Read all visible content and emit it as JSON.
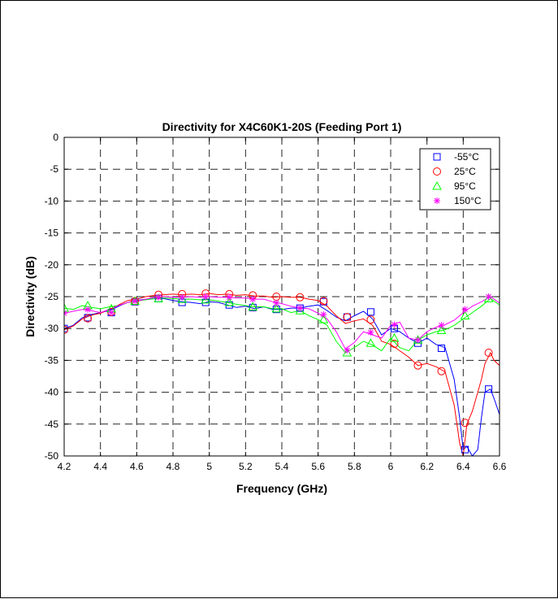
{
  "chart_data": {
    "type": "line",
    "title": "Directivity for X4C60K1-20S (Feeding Port 1)",
    "xlabel": "Frequency (GHz)",
    "ylabel": "Directivity (dB)",
    "xlim": [
      4.2,
      6.6
    ],
    "ylim": [
      -50,
      0
    ],
    "xticks": [
      4.2,
      4.4,
      4.6,
      4.8,
      5,
      5.2,
      5.4,
      5.6,
      5.8,
      6,
      6.2,
      6.4,
      6.6
    ],
    "xtick_labels": [
      "4.2",
      "4.4",
      "4.6",
      "4.8",
      "5",
      "5.2",
      "5.4",
      "5.6",
      "5.8",
      "6",
      "6.2",
      "6.4",
      "6.6"
    ],
    "yticks": [
      0,
      -5,
      -10,
      -15,
      -20,
      -25,
      -30,
      -35,
      -40,
      -45,
      -50
    ],
    "ytick_labels": [
      "0",
      "-5",
      "-10",
      "-15",
      "-20",
      "-25",
      "-30",
      "-35",
      "-40",
      "-45",
      "-50"
    ],
    "grid": true,
    "legend": "top-right",
    "series": [
      {
        "name": "-55°C",
        "color": "#0000ff",
        "marker": "square",
        "x": [
          4.2,
          4.25,
          4.3,
          4.35,
          4.4,
          4.45,
          4.5,
          4.55,
          4.6,
          4.65,
          4.7,
          4.75,
          4.8,
          4.85,
          4.9,
          4.95,
          5.0,
          5.05,
          5.1,
          5.15,
          5.2,
          5.25,
          5.3,
          5.35,
          5.4,
          5.45,
          5.5,
          5.55,
          5.6,
          5.65,
          5.7,
          5.75,
          5.8,
          5.85,
          5.9,
          5.95,
          6.0,
          6.05,
          6.1,
          6.15,
          6.2,
          6.25,
          6.3,
          6.35,
          6.38,
          6.4,
          6.42,
          6.45,
          6.48,
          6.5,
          6.52,
          6.55,
          6.57,
          6.6
        ],
        "y": [
          -30.0,
          -29.5,
          -28.3,
          -27.8,
          -27.5,
          -27.2,
          -26.5,
          -25.9,
          -25.6,
          -25.4,
          -25.3,
          -25.3,
          -25.6,
          -25.8,
          -25.9,
          -26.1,
          -25.8,
          -25.9,
          -26.3,
          -26.7,
          -26.5,
          -26.9,
          -26.6,
          -27.0,
          -27.0,
          -26.8,
          -26.8,
          -26.5,
          -26.3,
          -27.2,
          -28.2,
          -28.8,
          -28.0,
          -27.3,
          -28.5,
          -31.0,
          -30.0,
          -30.5,
          -31.5,
          -32.3,
          -31.5,
          -32.5,
          -33.0,
          -38.0,
          -44.0,
          -49.0,
          -48.5,
          -50.0,
          -49.0,
          -44.0,
          -40.0,
          -39.5,
          -41.0,
          -43.5
        ],
        "marker_x": [
          4.2,
          4.33,
          4.46,
          4.59,
          4.72,
          4.85,
          4.98,
          5.11,
          5.24,
          5.37,
          5.5,
          5.63,
          5.76,
          5.89,
          6.02,
          6.15,
          6.28,
          6.41,
          6.54
        ],
        "marker_y": [
          -30.0,
          -28.3,
          -27.5,
          -25.8,
          -25.3,
          -25.9,
          -25.9,
          -26.3,
          -26.7,
          -27.0,
          -26.8,
          -25.8,
          -28.2,
          -27.4,
          -30.0,
          -32.3,
          -33.1,
          -49.0,
          -39.5
        ]
      },
      {
        "name": "25°C",
        "color": "#ff0000",
        "marker": "circle",
        "x": [
          4.2,
          4.25,
          4.3,
          4.35,
          4.4,
          4.45,
          4.5,
          4.55,
          4.6,
          4.65,
          4.7,
          4.75,
          4.8,
          4.85,
          4.9,
          4.95,
          5.0,
          5.05,
          5.1,
          5.15,
          5.2,
          5.25,
          5.3,
          5.35,
          5.4,
          5.45,
          5.5,
          5.55,
          5.6,
          5.65,
          5.7,
          5.75,
          5.8,
          5.85,
          5.9,
          5.95,
          6.0,
          6.05,
          6.1,
          6.15,
          6.2,
          6.25,
          6.3,
          6.35,
          6.38,
          6.4,
          6.42,
          6.45,
          6.48,
          6.5,
          6.52,
          6.55,
          6.57,
          6.6
        ],
        "y": [
          -30.2,
          -29.6,
          -28.5,
          -27.9,
          -27.6,
          -27.0,
          -26.3,
          -25.6,
          -25.4,
          -25.0,
          -24.8,
          -24.7,
          -24.6,
          -24.7,
          -24.6,
          -24.7,
          -24.5,
          -24.7,
          -24.6,
          -24.8,
          -24.7,
          -24.9,
          -24.9,
          -25.1,
          -25.0,
          -25.1,
          -25.1,
          -25.4,
          -25.6,
          -26.5,
          -28.0,
          -29.2,
          -28.8,
          -28.5,
          -29.5,
          -32.0,
          -32.5,
          -33.5,
          -34.5,
          -35.8,
          -35.5,
          -36.0,
          -36.8,
          -42.0,
          -48.0,
          -50.0,
          -45.0,
          -43.0,
          -40.0,
          -38.0,
          -35.5,
          -33.8,
          -35.0,
          -35.8
        ],
        "marker_x": [
          4.2,
          4.33,
          4.46,
          4.59,
          4.72,
          4.85,
          4.98,
          5.11,
          5.24,
          5.37,
          5.5,
          5.63,
          5.76,
          5.89,
          6.02,
          6.15,
          6.28,
          6.41,
          6.54
        ],
        "marker_y": [
          -30.2,
          -28.4,
          -27.4,
          -25.7,
          -24.7,
          -24.6,
          -24.5,
          -24.6,
          -24.8,
          -25.0,
          -25.1,
          -25.7,
          -28.2,
          -28.6,
          -32.4,
          -35.8,
          -36.7,
          -44.8,
          -33.8
        ]
      },
      {
        "name": "95°C",
        "color": "#00ff00",
        "marker": "triangle",
        "x": [
          4.2,
          4.25,
          4.3,
          4.35,
          4.4,
          4.45,
          4.5,
          4.55,
          4.6,
          4.65,
          4.7,
          4.75,
          4.8,
          4.85,
          4.9,
          4.95,
          5.0,
          5.05,
          5.1,
          5.15,
          5.2,
          5.25,
          5.3,
          5.35,
          5.4,
          5.45,
          5.5,
          5.55,
          5.6,
          5.65,
          5.7,
          5.75,
          5.8,
          5.85,
          5.9,
          5.95,
          6.0,
          6.05,
          6.1,
          6.15,
          6.2,
          6.25,
          6.3,
          6.35,
          6.4,
          6.45,
          6.5,
          6.55,
          6.6
        ],
        "y": [
          -26.8,
          -27.0,
          -26.4,
          -26.7,
          -26.9,
          -26.6,
          -26.4,
          -25.9,
          -25.7,
          -25.5,
          -25.3,
          -25.2,
          -25.3,
          -25.4,
          -25.4,
          -25.5,
          -25.5,
          -25.7,
          -25.9,
          -26.2,
          -26.4,
          -26.6,
          -26.6,
          -26.9,
          -26.9,
          -27.5,
          -27.2,
          -28.0,
          -28.6,
          -29.5,
          -32.0,
          -33.8,
          -33.0,
          -32.0,
          -32.6,
          -33.5,
          -31.5,
          -33.0,
          -33.5,
          -31.8,
          -31.0,
          -30.5,
          -30.2,
          -29.5,
          -28.5,
          -27.5,
          -26.5,
          -25.3,
          -26.3
        ],
        "marker_x": [
          4.2,
          4.33,
          4.46,
          4.59,
          4.72,
          4.85,
          4.98,
          5.11,
          5.24,
          5.37,
          5.5,
          5.63,
          5.76,
          5.89,
          6.02,
          6.15,
          6.28,
          6.41,
          6.54
        ],
        "marker_y": [
          -26.8,
          -26.4,
          -26.9,
          -25.7,
          -25.3,
          -25.4,
          -25.5,
          -25.9,
          -26.6,
          -26.9,
          -27.2,
          -28.6,
          -33.8,
          -32.3,
          -31.5,
          -31.8,
          -30.3,
          -28.0,
          -25.3
        ]
      },
      {
        "name": "150°C",
        "color": "#ff00ff",
        "marker": "asterisk",
        "x": [
          4.2,
          4.25,
          4.3,
          4.35,
          4.4,
          4.45,
          4.5,
          4.55,
          4.6,
          4.65,
          4.7,
          4.75,
          4.8,
          4.85,
          4.9,
          4.95,
          5.0,
          5.05,
          5.1,
          5.15,
          5.2,
          5.25,
          5.3,
          5.35,
          5.4,
          5.45,
          5.5,
          5.55,
          5.6,
          5.65,
          5.7,
          5.75,
          5.8,
          5.85,
          5.9,
          5.95,
          6.0,
          6.05,
          6.1,
          6.15,
          6.2,
          6.25,
          6.3,
          6.35,
          6.4,
          6.45,
          6.5,
          6.55,
          6.6
        ],
        "y": [
          -27.6,
          -27.3,
          -27.0,
          -27.2,
          -27.5,
          -27.0,
          -26.4,
          -25.9,
          -25.7,
          -25.4,
          -25.1,
          -25.0,
          -25.1,
          -25.1,
          -25.0,
          -25.1,
          -25.0,
          -25.1,
          -25.1,
          -25.2,
          -25.2,
          -25.4,
          -25.4,
          -25.8,
          -26.1,
          -26.5,
          -26.8,
          -26.9,
          -27.6,
          -28.5,
          -30.5,
          -33.2,
          -32.2,
          -30.5,
          -31.0,
          -31.5,
          -29.5,
          -29.0,
          -31.5,
          -31.8,
          -30.5,
          -29.8,
          -29.4,
          -28.7,
          -27.5,
          -26.5,
          -25.8,
          -25.0,
          -26.0
        ],
        "marker_x": [
          4.2,
          4.33,
          4.46,
          4.59,
          4.72,
          4.85,
          4.98,
          5.11,
          5.24,
          5.37,
          5.5,
          5.63,
          5.76,
          5.89,
          6.02,
          6.15,
          6.28,
          6.41,
          6.54
        ],
        "marker_y": [
          -27.6,
          -27.0,
          -27.5,
          -25.7,
          -25.1,
          -25.1,
          -25.0,
          -25.1,
          -25.4,
          -26.0,
          -26.8,
          -27.8,
          -33.4,
          -30.6,
          -29.4,
          -31.8,
          -29.5,
          -27.0,
          -25.0
        ]
      }
    ]
  }
}
